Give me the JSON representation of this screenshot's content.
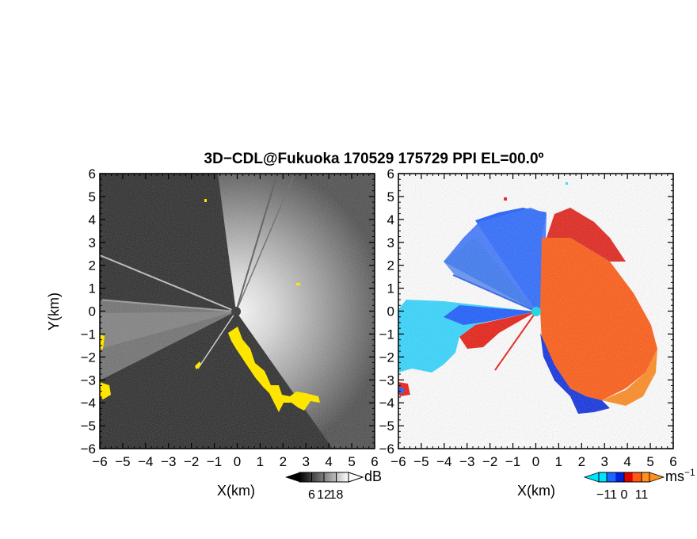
{
  "chart_data": [
    {
      "type": "heatmap",
      "title": "3D−CDL@Fukuoka 170529 175729 PPI EL=00.0º",
      "panel": "reflectivity",
      "xlabel": "X(km)",
      "ylabel": "Y(km)",
      "xlim": [
        -6,
        6
      ],
      "ylim": [
        -6,
        6
      ],
      "xticks": [
        "−6",
        "−5",
        "−4",
        "−3",
        "−2",
        "−1",
        "0",
        "1",
        "2",
        "3",
        "4",
        "5",
        "6"
      ],
      "yticks": [
        "6",
        "5",
        "4",
        "3",
        "2",
        "1",
        "0",
        "−1",
        "−2",
        "−3",
        "−4",
        "−5",
        "−6"
      ],
      "colorbar": {
        "unit": "dB",
        "ticks": [
          "6",
          "12",
          "18"
        ],
        "range": [
          0,
          24
        ],
        "palette": [
          "#000000",
          "#ffffff"
        ]
      },
      "highlight_color": "#ffff00",
      "radar_center": [
        0,
        0
      ]
    },
    {
      "type": "heatmap",
      "panel": "doppler_velocity",
      "xlabel": "X(km)",
      "xlim": [
        -6,
        6
      ],
      "ylim": [
        -6,
        6
      ],
      "xticks": [
        "−6",
        "−5",
        "−4",
        "−3",
        "−2",
        "−1",
        "0",
        "1",
        "2",
        "3",
        "4",
        "5",
        "6"
      ],
      "yticks": [
        "6",
        "5",
        "4",
        "3",
        "2",
        "1",
        "0",
        "−1",
        "−2",
        "−3",
        "−4",
        "−5",
        "−6"
      ],
      "colorbar": {
        "unit": "ms",
        "unit_exponent": "−1",
        "ticks": [
          "−11",
          "0",
          "11"
        ],
        "range": [
          -16,
          16
        ],
        "palette": [
          "#00e5ff",
          "#1a66ff",
          "#0022dd",
          "#e00000",
          "#ff5a10",
          "#ff9020"
        ]
      },
      "radar_center": [
        0,
        0
      ],
      "radar_marker_color": "#2ad4e0"
    }
  ]
}
